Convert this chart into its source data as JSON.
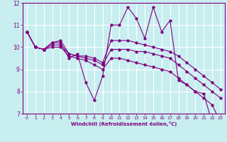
{
  "xlabel": "Windchill (Refroidissement éolien,°C)",
  "background_color": "#c8eef0",
  "grid_color": "#ffffff",
  "line_color": "#800080",
  "xlim": [
    -0.5,
    23.5
  ],
  "ylim": [
    7,
    12
  ],
  "xticks": [
    0,
    1,
    2,
    3,
    4,
    5,
    6,
    7,
    8,
    9,
    10,
    11,
    12,
    13,
    14,
    15,
    16,
    17,
    18,
    19,
    20,
    21,
    22,
    23
  ],
  "yticks": [
    7,
    8,
    9,
    10,
    11,
    12
  ],
  "series": {
    "line1": {
      "x": [
        0,
        1,
        2,
        3,
        4,
        5,
        6,
        7,
        8,
        9,
        10,
        11,
        12,
        13,
        14,
        15,
        16,
        17,
        18,
        19,
        20,
        21,
        22
      ],
      "y": [
        10.7,
        10.0,
        9.9,
        10.2,
        10.2,
        9.5,
        9.7,
        8.4,
        7.6,
        8.7,
        11.0,
        11.0,
        11.8,
        11.3,
        10.4,
        11.8,
        10.7,
        11.2,
        8.5,
        8.3,
        8.0,
        7.9,
        6.6
      ]
    },
    "line2": {
      "x": [
        0,
        1,
        2,
        3,
        4,
        5,
        6,
        7,
        8,
        9,
        10,
        11,
        12,
        13,
        14,
        15,
        16,
        17,
        18,
        19,
        20,
        21,
        22,
        23
      ],
      "y": [
        10.7,
        10.0,
        9.9,
        10.2,
        10.3,
        9.7,
        9.6,
        9.6,
        9.5,
        9.3,
        10.3,
        10.3,
        10.3,
        10.2,
        10.1,
        10.0,
        9.9,
        9.8,
        9.6,
        9.3,
        9.0,
        8.7,
        8.4,
        8.1
      ]
    },
    "line3": {
      "x": [
        0,
        1,
        2,
        3,
        4,
        5,
        6,
        7,
        8,
        9,
        10,
        11,
        12,
        13,
        14,
        15,
        16,
        17,
        18,
        19,
        20,
        21,
        22,
        23
      ],
      "y": [
        10.7,
        10.0,
        9.9,
        10.1,
        10.1,
        9.7,
        9.6,
        9.5,
        9.4,
        9.2,
        9.9,
        9.9,
        9.9,
        9.8,
        9.8,
        9.7,
        9.6,
        9.5,
        9.2,
        8.9,
        8.6,
        8.3,
        8.0,
        7.7
      ]
    },
    "line4": {
      "x": [
        0,
        1,
        2,
        3,
        4,
        5,
        6,
        7,
        8,
        9,
        10,
        11,
        12,
        13,
        14,
        15,
        16,
        17,
        18,
        19,
        20,
        21,
        22,
        23
      ],
      "y": [
        10.7,
        10.0,
        9.9,
        10.0,
        10.0,
        9.6,
        9.5,
        9.4,
        9.2,
        9.0,
        9.5,
        9.5,
        9.4,
        9.3,
        9.2,
        9.1,
        9.0,
        8.9,
        8.6,
        8.3,
        8.0,
        7.7,
        7.4,
        6.6
      ]
    }
  }
}
